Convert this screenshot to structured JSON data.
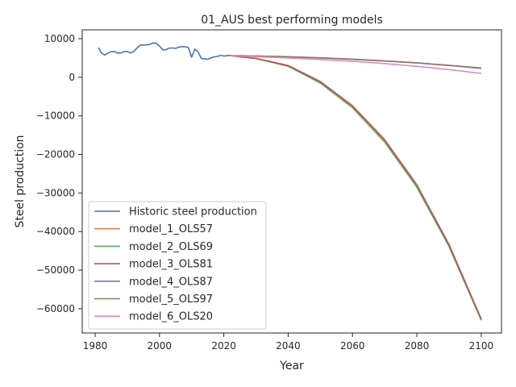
{
  "chart_data": {
    "type": "line",
    "title": "01_AUS best performing models",
    "xlabel": "Year",
    "ylabel": "Steel production",
    "xlim": [
      1976,
      2106.3
    ],
    "ylim": [
      -66300,
      12300
    ],
    "xticks": [
      1980,
      2000,
      2020,
      2040,
      2060,
      2080,
      2100
    ],
    "yticks": [
      10000,
      0,
      -10000,
      -20000,
      -30000,
      -40000,
      -50000,
      -60000
    ],
    "grid": false,
    "legend_position": "lower-left",
    "series": [
      {
        "name": "Historic steel production",
        "color": "#4c72b0",
        "x": [
          1981,
          1982,
          1983,
          1984,
          1985,
          1986,
          1987,
          1988,
          1989,
          1990,
          1991,
          1992,
          1993,
          1994,
          1995,
          1996,
          1997,
          1998,
          1999,
          2000,
          2001,
          2002,
          2003,
          2004,
          2005,
          2006,
          2007,
          2008,
          2009,
          2010,
          2011,
          2012,
          2013,
          2014,
          2015,
          2016,
          2017,
          2018,
          2019,
          2020,
          2021,
          2022
        ],
        "y": [
          7650,
          6300,
          5750,
          6300,
          6650,
          6700,
          6250,
          6300,
          6650,
          6700,
          6300,
          6700,
          7550,
          8300,
          8400,
          8400,
          8550,
          8900,
          8850,
          8100,
          7100,
          7150,
          7550,
          7600,
          7500,
          7800,
          7950,
          7900,
          7700,
          5200,
          7300,
          6500,
          4900,
          4800,
          4700,
          5000,
          5300,
          5400,
          5700,
          5500,
          5600,
          5700
        ]
      },
      {
        "name": "model_1_OLS57",
        "color": "#dd8452",
        "x": [
          2022,
          2030,
          2040,
          2050,
          2060,
          2070,
          2080,
          2090,
          2100
        ],
        "y": [
          5600,
          4900,
          3000,
          -1200,
          -7500,
          -16300,
          -28000,
          -43500,
          -62800
        ]
      },
      {
        "name": "model_2_OLS69",
        "color": "#55a868",
        "x": [
          2022,
          2030,
          2040,
          2050,
          2060,
          2070,
          2080,
          2090,
          2100
        ],
        "y": [
          5600,
          4850,
          2850,
          -1500,
          -7900,
          -16800,
          -28500,
          -43900,
          -63000
        ]
      },
      {
        "name": "model_3_OLS81",
        "color": "#c44e52",
        "x": [
          2022,
          2030,
          2040,
          2050,
          2060,
          2070,
          2080,
          2090,
          2100
        ],
        "y": [
          5600,
          4900,
          3050,
          -1100,
          -7400,
          -16200,
          -27900,
          -43400,
          -62700
        ]
      },
      {
        "name": "model_4_OLS87",
        "color": "#8172b3",
        "x": [
          2022,
          2030,
          2040,
          2050,
          2060,
          2070,
          2080,
          2090,
          2100
        ],
        "y": [
          5650,
          5500,
          5300,
          5000,
          4650,
          4200,
          3700,
          3050,
          2300
        ]
      },
      {
        "name": "model_5_OLS97",
        "color": "#937860",
        "x": [
          2022,
          2030,
          2040,
          2050,
          2060,
          2070,
          2080,
          2090,
          2100
        ],
        "y": [
          5650,
          5520,
          5330,
          5050,
          4700,
          4250,
          3750,
          3100,
          2400
        ]
      },
      {
        "name": "model_6_OLS20",
        "color": "#da8bc3",
        "x": [
          2022,
          2030,
          2040,
          2050,
          2060,
          2070,
          2080,
          2090,
          2100
        ],
        "y": [
          5600,
          5350,
          5000,
          4600,
          4150,
          3550,
          2850,
          2000,
          1000
        ]
      }
    ]
  }
}
